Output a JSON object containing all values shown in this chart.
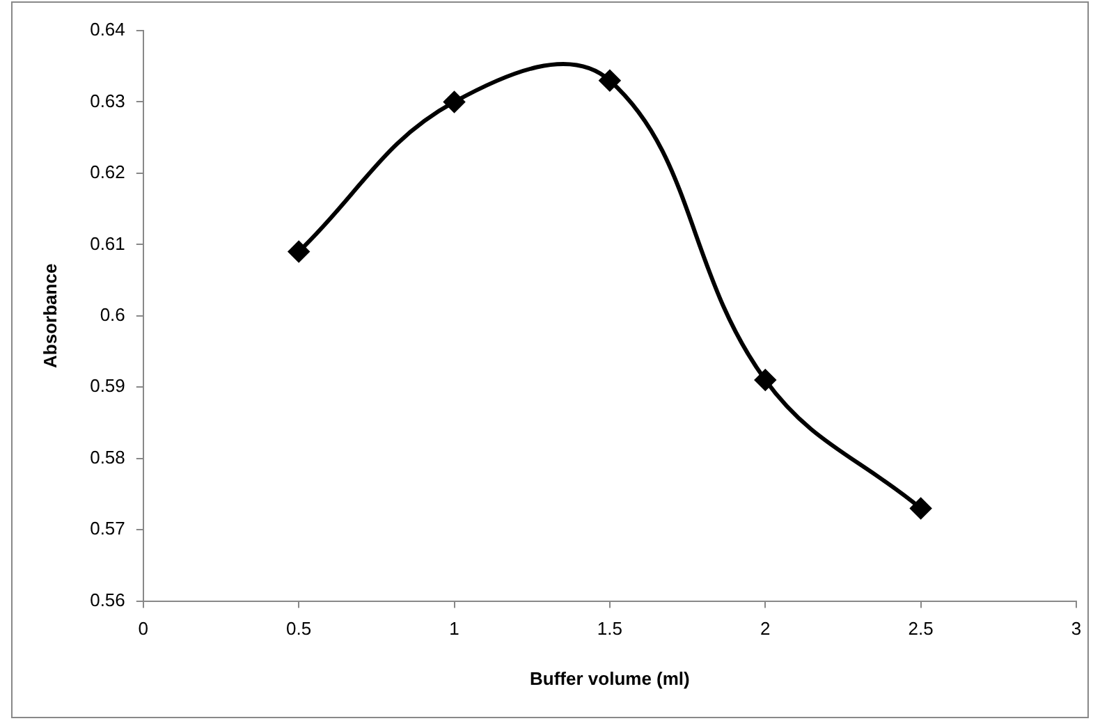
{
  "chart_data": {
    "type": "line",
    "xlabel": "Buffer volume (ml)",
    "ylabel": "Absorbance",
    "x": [
      0.5,
      1,
      1.5,
      2,
      2.5
    ],
    "series": [
      {
        "color": "#000000",
        "values": [
          0.609,
          0.63,
          0.633,
          0.591,
          0.573
        ]
      }
    ],
    "xlim": [
      0,
      3
    ],
    "xticks": [
      0,
      0.5,
      1,
      1.5,
      2,
      2.5,
      3
    ],
    "ylim": [
      0.56,
      0.64
    ],
    "yticks": [
      0.56,
      0.57,
      0.58,
      0.59,
      0.6,
      0.61,
      0.62,
      0.63,
      0.64
    ],
    "marker": "diamond",
    "line_style": "solid"
  }
}
